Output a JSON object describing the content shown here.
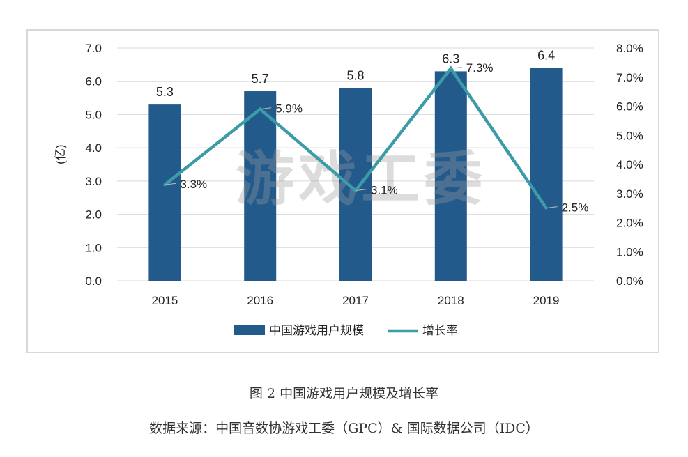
{
  "figure": {
    "title": "图 2  中国游戏用户规模及增长率",
    "source": "数据来源：中国音数协游戏工委（GPC）& 国际数据公司（IDC）"
  },
  "watermark": "游戏工委",
  "colors": {
    "bar": "#235a8c",
    "line": "#3b9ba6",
    "grid": "#d9d9d9",
    "text": "#222222"
  },
  "chart_data": {
    "type": "bar",
    "categories": [
      "2015",
      "2016",
      "2017",
      "2018",
      "2019"
    ],
    "series": [
      {
        "name": "中国游戏用户规模",
        "type": "bar",
        "axis": "left",
        "values": [
          5.3,
          5.7,
          5.8,
          6.3,
          6.4
        ],
        "labels": [
          "5.3",
          "5.7",
          "5.8",
          "6.3",
          "6.4"
        ]
      },
      {
        "name": "增长率",
        "type": "line",
        "axis": "right",
        "values": [
          3.3,
          5.9,
          3.1,
          7.3,
          2.5
        ],
        "labels": [
          "3.3%",
          "5.9%",
          "3.1%",
          "7.3%",
          "2.5%"
        ]
      }
    ],
    "ylabel": "(亿)",
    "ylim": [
      0,
      7
    ],
    "yticks": [
      "0.0",
      "1.0",
      "2.0",
      "3.0",
      "4.0",
      "5.0",
      "6.0",
      "7.0"
    ],
    "y2lim": [
      0,
      8
    ],
    "y2ticks": [
      "0.0%",
      "1.0%",
      "2.0%",
      "3.0%",
      "4.0%",
      "5.0%",
      "6.0%",
      "7.0%",
      "8.0%"
    ],
    "grid": true,
    "legend": "bottom"
  }
}
